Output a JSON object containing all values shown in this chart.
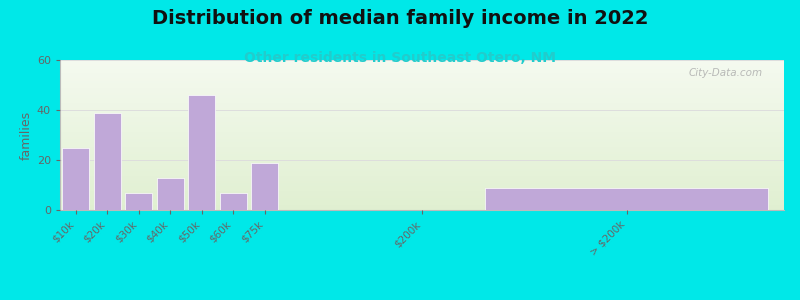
{
  "title": "Distribution of median family income in 2022",
  "subtitle": "Other residents in Southeast Otero, NM",
  "ylabel": "families",
  "background_outer": "#00e8e8",
  "bar_color": "#c0a8d8",
  "bar_edge_color": "#ffffff",
  "categories": [
    "$10k",
    "$20k",
    "$30k",
    "$40k",
    "$50k",
    "$60k",
    "$75k",
    "$200k",
    "> $200k"
  ],
  "values": [
    25,
    39,
    7,
    13,
    46,
    7,
    19,
    0,
    9
  ],
  "ylim": [
    0,
    60
  ],
  "yticks": [
    0,
    20,
    40,
    60
  ],
  "watermark": "City-Data.com",
  "title_fontsize": 14,
  "subtitle_fontsize": 10,
  "ylabel_fontsize": 9,
  "subtitle_color": "#22cccc",
  "grid_color": "#dddddd",
  "tick_label_color": "#666666",
  "bg_top": "#f5f8f0",
  "bg_bottom": "#e8f2e0"
}
